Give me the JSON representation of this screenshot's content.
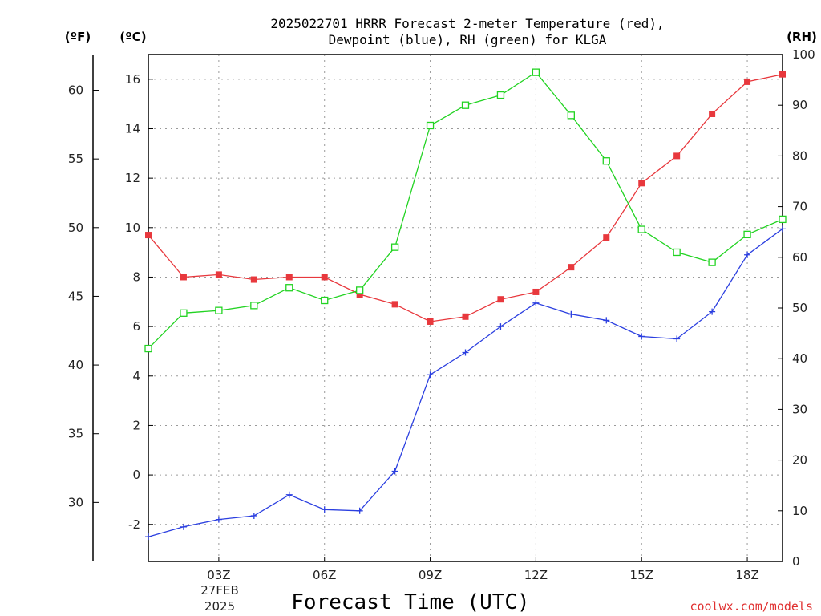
{
  "chart_data": {
    "type": "line",
    "title_line1": "2025022701 HRRR Forecast 2-meter Temperature (red),",
    "title_line2": "Dewpoint (blue), RH (green) for KLGA",
    "xlabel": "Forecast Time (UTC)",
    "x_hours": [
      1,
      2,
      3,
      4,
      5,
      6,
      7,
      8,
      9,
      10,
      11,
      12,
      13,
      14,
      15,
      16,
      17,
      18,
      19
    ],
    "x_ticks": [
      {
        "hour": 3,
        "label": "03Z"
      },
      {
        "hour": 6,
        "label": "06Z"
      },
      {
        "hour": 9,
        "label": "09Z"
      },
      {
        "hour": 12,
        "label": "12Z"
      },
      {
        "hour": 15,
        "label": "15Z"
      },
      {
        "hour": 18,
        "label": "18Z"
      }
    ],
    "date_label_day": "27FEB",
    "date_label_year": "2025",
    "xlim": [
      1,
      19
    ],
    "left_unit_f": "(ºF)",
    "left_unit_c": "(ºC)",
    "right_unit": "(RH)",
    "ylim_c": [
      -3.5,
      17
    ],
    "yticks_c": [
      "-2",
      "0",
      "2",
      "4",
      "6",
      "8",
      "10",
      "12",
      "14",
      "16"
    ],
    "yticks_f": [
      "30",
      "35",
      "40",
      "45",
      "50",
      "55",
      "60"
    ],
    "ylim_rh": [
      0,
      100
    ],
    "yticks_rh": [
      "0",
      "10",
      "20",
      "30",
      "40",
      "50",
      "60",
      "70",
      "80",
      "90",
      "100"
    ],
    "grid": true,
    "series": [
      {
        "name": "Temperature",
        "unit": "C",
        "color": "#e8383d",
        "marker": "filled-square",
        "values": [
          9.7,
          8.0,
          8.1,
          7.9,
          8.0,
          8.0,
          7.3,
          6.9,
          6.2,
          6.4,
          7.1,
          7.4,
          8.4,
          9.6,
          11.8,
          12.9,
          14.6,
          15.9,
          16.2
        ]
      },
      {
        "name": "Dewpoint",
        "unit": "C",
        "color": "#2b3fe0",
        "marker": "plus",
        "values": [
          -2.5,
          -2.1,
          -1.8,
          -1.65,
          -0.8,
          -1.4,
          -1.45,
          0.15,
          4.05,
          4.95,
          6.0,
          6.95,
          6.5,
          6.25,
          5.6,
          5.5,
          6.6,
          8.9,
          9.95
        ]
      },
      {
        "name": "RH",
        "unit": "%",
        "color": "#22d322",
        "marker": "open-square",
        "values": [
          42,
          49,
          49.5,
          50.5,
          54,
          51.5,
          53.5,
          62,
          86,
          90,
          92,
          96.5,
          88,
          79,
          65.5,
          61,
          59,
          64.5,
          67.5
        ]
      }
    ]
  },
  "credit": "coolwx.com/models"
}
